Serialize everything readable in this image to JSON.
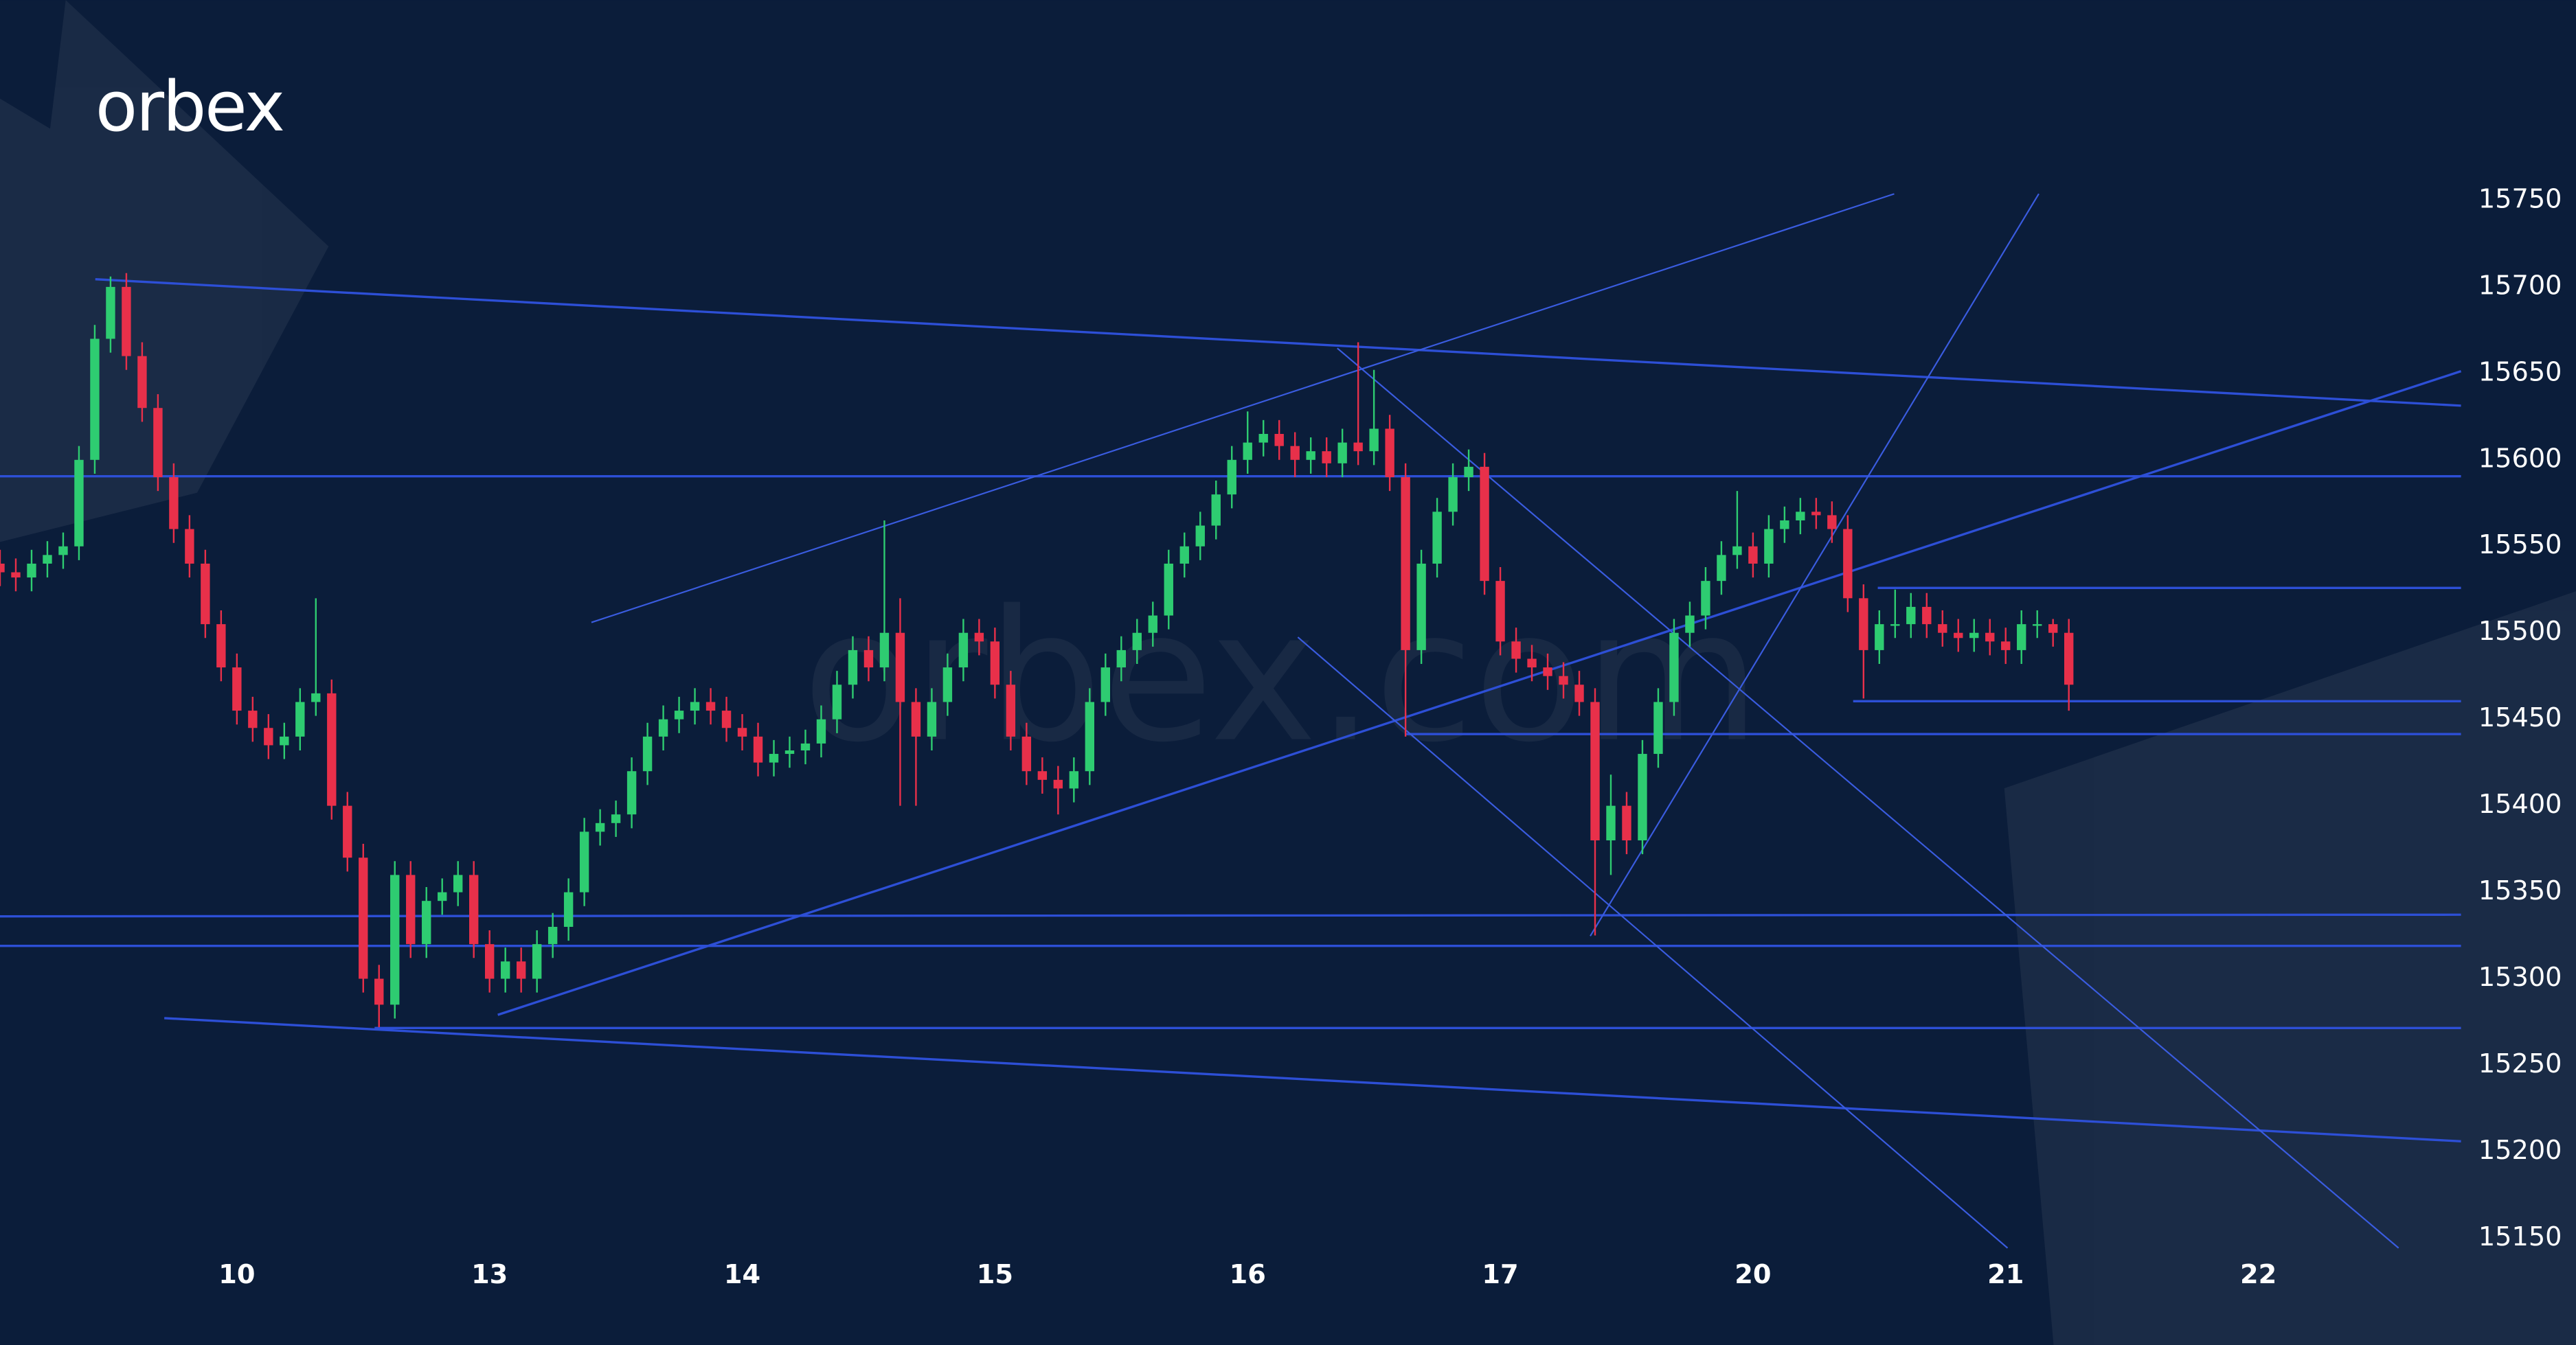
{
  "logo": "orbex",
  "watermark": "orbex.com",
  "chart_data": {
    "type": "candlestick",
    "up_color": "#2ecc71",
    "down_color": "#e8304a",
    "xlim": [
      0,
      155
    ],
    "ylim": [
      15150,
      15750
    ],
    "xticks": [
      {
        "value": 15,
        "label": "10"
      },
      {
        "value": 31,
        "label": "13"
      },
      {
        "value": 47,
        "label": "14"
      },
      {
        "value": 63,
        "label": "15"
      },
      {
        "value": 79,
        "label": "16"
      },
      {
        "value": 95,
        "label": "17"
      },
      {
        "value": 111,
        "label": "20"
      },
      {
        "value": 127,
        "label": "21"
      },
      {
        "value": 143,
        "label": "22"
      }
    ],
    "yticks": [
      15150,
      15200,
      15250,
      15300,
      15350,
      15400,
      15450,
      15500,
      15550,
      15600,
      15650,
      15700,
      15750
    ],
    "ohlc": [
      [
        15540,
        15548,
        15527,
        15535
      ],
      [
        15535,
        15543,
        15524,
        15532
      ],
      [
        15532,
        15548,
        15524,
        15540
      ],
      [
        15540,
        15553,
        15532,
        15545
      ],
      [
        15545,
        15558,
        15537,
        15550
      ],
      [
        15550,
        15608,
        15542,
        15600
      ],
      [
        15600,
        15678,
        15592,
        15670
      ],
      [
        15670,
        15706,
        15662,
        15700
      ],
      [
        15700,
        15708,
        15652,
        15660
      ],
      [
        15660,
        15668,
        15622,
        15630
      ],
      [
        15630,
        15638,
        15582,
        15590
      ],
      [
        15590,
        15598,
        15552,
        15560
      ],
      [
        15560,
        15568,
        15532,
        15540
      ],
      [
        15540,
        15548,
        15497,
        15505
      ],
      [
        15505,
        15513,
        15472,
        15480
      ],
      [
        15480,
        15488,
        15447,
        15455
      ],
      [
        15455,
        15463,
        15437,
        15445
      ],
      [
        15445,
        15453,
        15427,
        15435
      ],
      [
        15435,
        15448,
        15427,
        15440
      ],
      [
        15440,
        15468,
        15432,
        15460
      ],
      [
        15460,
        15520,
        15452,
        15465
      ],
      [
        15465,
        15473,
        15392,
        15400
      ],
      [
        15400,
        15408,
        15362,
        15370
      ],
      [
        15370,
        15378,
        15292,
        15300
      ],
      [
        15300,
        15308,
        15272,
        15285
      ],
      [
        15285,
        15368,
        15277,
        15360
      ],
      [
        15360,
        15368,
        15312,
        15320
      ],
      [
        15320,
        15353,
        15312,
        15345
      ],
      [
        15345,
        15358,
        15337,
        15350
      ],
      [
        15350,
        15368,
        15342,
        15360
      ],
      [
        15360,
        15368,
        15312,
        15320
      ],
      [
        15320,
        15328,
        15292,
        15300
      ],
      [
        15300,
        15318,
        15292,
        15310
      ],
      [
        15310,
        15318,
        15292,
        15300
      ],
      [
        15300,
        15328,
        15292,
        15320
      ],
      [
        15320,
        15338,
        15312,
        15330
      ],
      [
        15330,
        15358,
        15322,
        15350
      ],
      [
        15350,
        15393,
        15342,
        15385
      ],
      [
        15385,
        15398,
        15377,
        15390
      ],
      [
        15390,
        15403,
        15382,
        15395
      ],
      [
        15395,
        15428,
        15387,
        15420
      ],
      [
        15420,
        15448,
        15412,
        15440
      ],
      [
        15440,
        15458,
        15432,
        15450
      ],
      [
        15450,
        15463,
        15442,
        15455
      ],
      [
        15455,
        15468,
        15447,
        15460
      ],
      [
        15460,
        15468,
        15447,
        15455
      ],
      [
        15455,
        15463,
        15437,
        15445
      ],
      [
        15445,
        15453,
        15432,
        15440
      ],
      [
        15440,
        15448,
        15417,
        15425
      ],
      [
        15425,
        15438,
        15417,
        15430
      ],
      [
        15430,
        15440,
        15422,
        15432
      ],
      [
        15432,
        15444,
        15424,
        15436
      ],
      [
        15436,
        15458,
        15428,
        15450
      ],
      [
        15450,
        15478,
        15442,
        15470
      ],
      [
        15470,
        15498,
        15462,
        15490
      ],
      [
        15490,
        15498,
        15472,
        15480
      ],
      [
        15480,
        15565,
        15472,
        15500
      ],
      [
        15500,
        15520,
        15400,
        15460
      ],
      [
        15460,
        15468,
        15400,
        15440
      ],
      [
        15440,
        15468,
        15432,
        15460
      ],
      [
        15460,
        15488,
        15452,
        15480
      ],
      [
        15480,
        15508,
        15472,
        15500
      ],
      [
        15500,
        15508,
        15487,
        15495
      ],
      [
        15495,
        15503,
        15462,
        15470
      ],
      [
        15470,
        15478,
        15432,
        15440
      ],
      [
        15440,
        15448,
        15412,
        15420
      ],
      [
        15420,
        15428,
        15407,
        15415
      ],
      [
        15415,
        15423,
        15395,
        15410
      ],
      [
        15410,
        15428,
        15402,
        15420
      ],
      [
        15420,
        15468,
        15412,
        15460
      ],
      [
        15460,
        15488,
        15452,
        15480
      ],
      [
        15480,
        15498,
        15472,
        15490
      ],
      [
        15490,
        15508,
        15482,
        15500
      ],
      [
        15500,
        15518,
        15492,
        15510
      ],
      [
        15510,
        15548,
        15502,
        15540
      ],
      [
        15540,
        15558,
        15532,
        15550
      ],
      [
        15550,
        15570,
        15542,
        15562
      ],
      [
        15562,
        15588,
        15554,
        15580
      ],
      [
        15580,
        15608,
        15572,
        15600
      ],
      [
        15600,
        15628,
        15592,
        15610
      ],
      [
        15610,
        15623,
        15602,
        15615
      ],
      [
        15615,
        15623,
        15600,
        15608
      ],
      [
        15608,
        15616,
        15590,
        15600
      ],
      [
        15600,
        15613,
        15592,
        15605
      ],
      [
        15605,
        15613,
        15590,
        15598
      ],
      [
        15598,
        15618,
        15590,
        15610
      ],
      [
        15610,
        15668,
        15597,
        15605
      ],
      [
        15605,
        15652,
        15597,
        15618
      ],
      [
        15618,
        15626,
        15582,
        15590
      ],
      [
        15590,
        15598,
        15440,
        15490
      ],
      [
        15490,
        15548,
        15482,
        15540
      ],
      [
        15540,
        15578,
        15532,
        15570
      ],
      [
        15570,
        15598,
        15562,
        15590
      ],
      [
        15590,
        15606,
        15582,
        15596
      ],
      [
        15596,
        15604,
        15522,
        15530
      ],
      [
        15530,
        15538,
        15487,
        15495
      ],
      [
        15495,
        15503,
        15477,
        15485
      ],
      [
        15485,
        15493,
        15472,
        15480
      ],
      [
        15480,
        15488,
        15467,
        15475
      ],
      [
        15475,
        15483,
        15462,
        15470
      ],
      [
        15470,
        15478,
        15452,
        15460
      ],
      [
        15460,
        15468,
        15325,
        15380
      ],
      [
        15380,
        15418,
        15360,
        15400
      ],
      [
        15400,
        15408,
        15372,
        15380
      ],
      [
        15380,
        15438,
        15372,
        15430
      ],
      [
        15430,
        15468,
        15422,
        15460
      ],
      [
        15460,
        15508,
        15452,
        15500
      ],
      [
        15500,
        15518,
        15492,
        15510
      ],
      [
        15510,
        15538,
        15502,
        15530
      ],
      [
        15530,
        15553,
        15522,
        15545
      ],
      [
        15545,
        15582,
        15537,
        15550
      ],
      [
        15550,
        15558,
        15532,
        15540
      ],
      [
        15540,
        15568,
        15532,
        15560
      ],
      [
        15560,
        15573,
        15552,
        15565
      ],
      [
        15565,
        15578,
        15557,
        15570
      ],
      [
        15570,
        15578,
        15560,
        15568
      ],
      [
        15568,
        15576,
        15552,
        15560
      ],
      [
        15560,
        15568,
        15512,
        15520
      ],
      [
        15520,
        15528,
        15462,
        15490
      ],
      [
        15490,
        15513,
        15482,
        15505
      ],
      [
        15505,
        15525,
        15497,
        15505
      ],
      [
        15505,
        15523,
        15497,
        15515
      ],
      [
        15515,
        15523,
        15497,
        15505
      ],
      [
        15505,
        15513,
        15492,
        15500
      ],
      [
        15500,
        15508,
        15489,
        15497
      ],
      [
        15497,
        15508,
        15489,
        15500
      ],
      [
        15500,
        15508,
        15487,
        15495
      ],
      [
        15495,
        15503,
        15482,
        15490
      ],
      [
        15490,
        15513,
        15482,
        15505
      ],
      [
        15505,
        15513,
        15497,
        15505
      ],
      [
        15505,
        15508,
        15492,
        15500
      ],
      [
        15500,
        15508,
        15455,
        15470
      ]
    ]
  }
}
